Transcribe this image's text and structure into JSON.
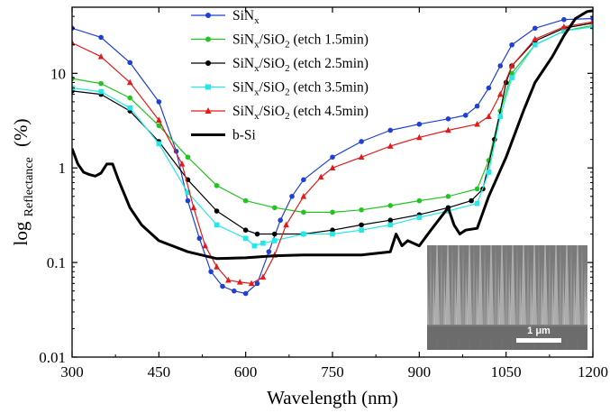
{
  "chart_data": {
    "type": "line",
    "xlabel": "Wavelength (nm)",
    "ylabel": "log",
    "ylabel_subscript": "Reflectance",
    "ylabel_unit": "(%)",
    "xlim": [
      300,
      1200
    ],
    "ylim": [
      0.01,
      50
    ],
    "y_scale": "log",
    "x_ticks": [
      300,
      450,
      600,
      750,
      900,
      1050,
      1200
    ],
    "y_ticks": [
      0.01,
      0.1,
      1,
      10
    ],
    "y_tick_labels": [
      "0.01",
      "0.1",
      "1",
      "10"
    ],
    "grid": false,
    "legend_position": "top-center",
    "inset": {
      "scale_bar_label": "1 μm"
    },
    "series": [
      {
        "name": "SiN_x",
        "label_parts": [
          [
            "SiN",
            ""
          ],
          [
            "x",
            "sub"
          ]
        ],
        "color": "#1f3fd6",
        "marker": "circle",
        "x": [
          300,
          350,
          400,
          450,
          480,
          500,
          520,
          540,
          560,
          580,
          600,
          620,
          640,
          660,
          680,
          700,
          750,
          800,
          850,
          900,
          950,
          980,
          1000,
          1020,
          1040,
          1060,
          1100,
          1150,
          1200
        ],
        "y": [
          30,
          24,
          13,
          5,
          1.5,
          0.45,
          0.18,
          0.08,
          0.056,
          0.05,
          0.047,
          0.06,
          0.13,
          0.28,
          0.5,
          0.75,
          1.3,
          1.9,
          2.5,
          2.9,
          3.3,
          3.6,
          4.5,
          7,
          12,
          20,
          30,
          37,
          38
        ]
      },
      {
        "name": "SiN_x/SiO_2 (etch 1.5min)",
        "label_parts": [
          [
            "SiN",
            ""
          ],
          [
            "x",
            "sub"
          ],
          [
            "/SiO",
            ""
          ],
          [
            "2",
            "sub"
          ],
          [
            " (etch 1.5min)",
            ""
          ]
        ],
        "color": "#22c422",
        "marker": "circle",
        "x": [
          300,
          350,
          400,
          450,
          500,
          550,
          600,
          650,
          700,
          750,
          800,
          850,
          900,
          950,
          1000,
          1020,
          1040,
          1060,
          1100,
          1150,
          1200
        ],
        "y": [
          8.8,
          7.8,
          5.5,
          2.8,
          1.3,
          0.65,
          0.45,
          0.38,
          0.34,
          0.34,
          0.36,
          0.4,
          0.45,
          0.5,
          0.6,
          1.2,
          4,
          10,
          20,
          28,
          32
        ]
      },
      {
        "name": "SiN_x/SiO_2 (etch 2.5min)",
        "label_parts": [
          [
            "SiN",
            ""
          ],
          [
            "x",
            "sub"
          ],
          [
            "/SiO",
            ""
          ],
          [
            "2",
            "sub"
          ],
          [
            " (etch 2.5min)",
            ""
          ]
        ],
        "color": "#000000",
        "marker": "circle",
        "x": [
          300,
          350,
          400,
          450,
          500,
          550,
          600,
          620,
          650,
          700,
          750,
          800,
          850,
          900,
          950,
          990,
          1010,
          1030,
          1050,
          1060,
          1100,
          1150,
          1200
        ],
        "y": [
          6.5,
          6,
          4,
          1.9,
          0.75,
          0.35,
          0.22,
          0.2,
          0.2,
          0.2,
          0.22,
          0.25,
          0.28,
          0.32,
          0.38,
          0.45,
          0.6,
          2,
          8,
          12,
          22,
          30,
          34
        ]
      },
      {
        "name": "SiN_x/SiO_2 (etch 3.5min)",
        "label_parts": [
          [
            "SiN",
            ""
          ],
          [
            "x",
            "sub"
          ],
          [
            "/SiO",
            ""
          ],
          [
            "2",
            "sub"
          ],
          [
            " (etch 3.5min)",
            ""
          ]
        ],
        "color": "#22e8e8",
        "marker": "square",
        "x": [
          300,
          350,
          400,
          450,
          500,
          550,
          600,
          615,
          630,
          650,
          700,
          750,
          800,
          850,
          900,
          950,
          1000,
          1020,
          1040,
          1060,
          1100,
          1150,
          1200
        ],
        "y": [
          7,
          6.4,
          4.3,
          1.8,
          0.55,
          0.25,
          0.18,
          0.15,
          0.16,
          0.17,
          0.2,
          0.2,
          0.22,
          0.25,
          0.3,
          0.35,
          0.42,
          0.9,
          3.5,
          9,
          20,
          28,
          31
        ]
      },
      {
        "name": "SiN_x/SiO_2 (etch 4.5min)",
        "label_parts": [
          [
            "SiN",
            ""
          ],
          [
            "x",
            "sub"
          ],
          [
            "/SiO",
            ""
          ],
          [
            "2",
            "sub"
          ],
          [
            " (etch 4.5min)",
            ""
          ]
        ],
        "color": "#e41a1a",
        "marker": "triangle",
        "x": [
          300,
          350,
          400,
          450,
          490,
          510,
          530,
          550,
          570,
          590,
          610,
          630,
          650,
          670,
          700,
          730,
          750,
          800,
          850,
          900,
          950,
          1000,
          1020,
          1040,
          1060,
          1100,
          1150,
          1200
        ],
        "y": [
          21,
          15,
          8,
          3.2,
          1.1,
          0.38,
          0.15,
          0.09,
          0.065,
          0.062,
          0.06,
          0.07,
          0.12,
          0.25,
          0.5,
          0.8,
          1.0,
          1.3,
          1.7,
          2.1,
          2.5,
          2.9,
          3.5,
          6,
          12,
          23,
          31,
          35
        ]
      },
      {
        "name": "b-Si",
        "label_parts": [
          [
            "b-Si",
            ""
          ]
        ],
        "color": "#000000",
        "marker": "none",
        "x": [
          300,
          310,
          320,
          330,
          340,
          350,
          360,
          370,
          380,
          400,
          420,
          450,
          500,
          550,
          600,
          650,
          700,
          750,
          800,
          850,
          860,
          870,
          880,
          900,
          920,
          950,
          960,
          970,
          980,
          1000,
          1020,
          1050,
          1080,
          1100,
          1130,
          1150,
          1170,
          1190,
          1200
        ],
        "y": [
          1.6,
          1.1,
          0.9,
          0.85,
          0.82,
          0.88,
          1.1,
          1.1,
          0.75,
          0.38,
          0.25,
          0.17,
          0.13,
          0.11,
          0.112,
          0.118,
          0.12,
          0.12,
          0.12,
          0.13,
          0.2,
          0.15,
          0.17,
          0.15,
          0.22,
          0.38,
          0.25,
          0.2,
          0.22,
          0.23,
          0.5,
          1.3,
          4,
          8,
          15,
          25,
          38,
          45,
          46
        ]
      }
    ]
  }
}
